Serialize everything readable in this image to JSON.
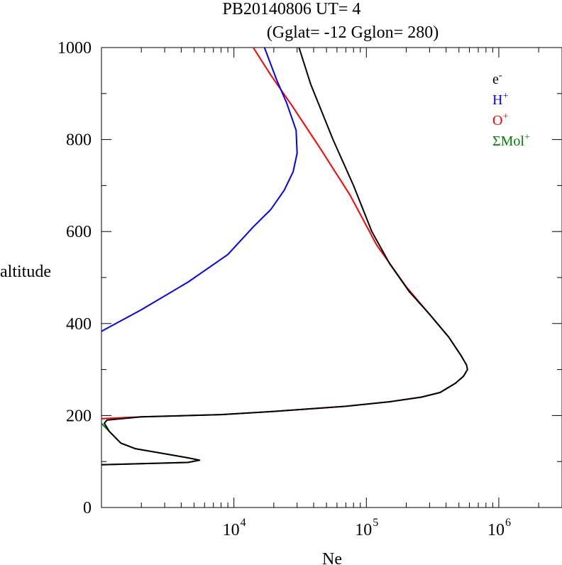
{
  "chart_data": {
    "type": "line",
    "title": "PB20140806   UT=  4",
    "subtitle": "(Gglat= -12   Gglon=  280)",
    "xlabel": "Ne",
    "ylabel": "altitude",
    "x_scale": "log",
    "xlim": [
      1000,
      3000000
    ],
    "ylim": [
      0,
      1000
    ],
    "grid": false,
    "legend_position": "top-right",
    "y_ticks": [
      0,
      200,
      400,
      600,
      800,
      1000
    ],
    "x_ticks": [
      {
        "base": "10",
        "exp": "4",
        "value": 10000
      },
      {
        "base": "10",
        "exp": "5",
        "value": 100000
      },
      {
        "base": "10",
        "exp": "6",
        "value": 1000000
      }
    ],
    "series": [
      {
        "name": "e",
        "sup": "-",
        "color": "#000000",
        "points": [
          [
            1000,
            93
          ],
          [
            4500,
            98
          ],
          [
            5500,
            103
          ],
          [
            4500,
            108
          ],
          [
            1800,
            128
          ],
          [
            1400,
            140
          ],
          [
            1150,
            165
          ],
          [
            1050,
            183
          ],
          [
            1100,
            190
          ],
          [
            2000,
            197
          ],
          [
            8000,
            202
          ],
          [
            20000,
            209
          ],
          [
            70000,
            220
          ],
          [
            150000,
            230
          ],
          [
            260000,
            240
          ],
          [
            360000,
            250
          ],
          [
            470000,
            270
          ],
          [
            540000,
            285
          ],
          [
            580000,
            300
          ],
          [
            570000,
            310
          ],
          [
            520000,
            330
          ],
          [
            420000,
            370
          ],
          [
            300000,
            420
          ],
          [
            210000,
            470
          ],
          [
            150000,
            530
          ],
          [
            110000,
            600
          ],
          [
            80000,
            700
          ],
          [
            56000,
            800
          ],
          [
            38000,
            920
          ],
          [
            31000,
            1000
          ]
        ]
      },
      {
        "name": "H",
        "sup": "+",
        "color": "#0000ff",
        "points": [
          [
            1000,
            383
          ],
          [
            2000,
            430
          ],
          [
            4500,
            490
          ],
          [
            9000,
            550
          ],
          [
            14000,
            610
          ],
          [
            19000,
            648
          ],
          [
            24000,
            690
          ],
          [
            28000,
            730
          ],
          [
            30000,
            770
          ],
          [
            29500,
            820
          ],
          [
            25000,
            880
          ],
          [
            21000,
            930
          ],
          [
            17000,
            1000
          ]
        ]
      },
      {
        "name": "O",
        "sup": "+",
        "color": "#ff0000",
        "points": [
          [
            1000,
            193
          ],
          [
            2000,
            197
          ],
          [
            8000,
            202
          ],
          [
            20000,
            209
          ],
          [
            70000,
            220
          ],
          [
            150000,
            230
          ],
          [
            260000,
            240
          ],
          [
            360000,
            250
          ],
          [
            470000,
            270
          ],
          [
            540000,
            285
          ],
          [
            580000,
            300
          ],
          [
            570000,
            310
          ],
          [
            520000,
            330
          ],
          [
            420000,
            370
          ],
          [
            300000,
            420
          ],
          [
            200000,
            480
          ],
          [
            120000,
            570
          ],
          [
            75000,
            680
          ],
          [
            45000,
            780
          ],
          [
            28000,
            870
          ],
          [
            19000,
            940
          ],
          [
            14000,
            1000
          ]
        ]
      },
      {
        "name": "ΣMol",
        "sup": "+",
        "color": "#008000",
        "points": [
          [
            1000,
            93
          ],
          [
            4500,
            98
          ],
          [
            5500,
            103
          ],
          [
            4500,
            108
          ],
          [
            1800,
            128
          ],
          [
            1400,
            140
          ],
          [
            1150,
            165
          ],
          [
            1000,
            183
          ]
        ]
      }
    ]
  }
}
